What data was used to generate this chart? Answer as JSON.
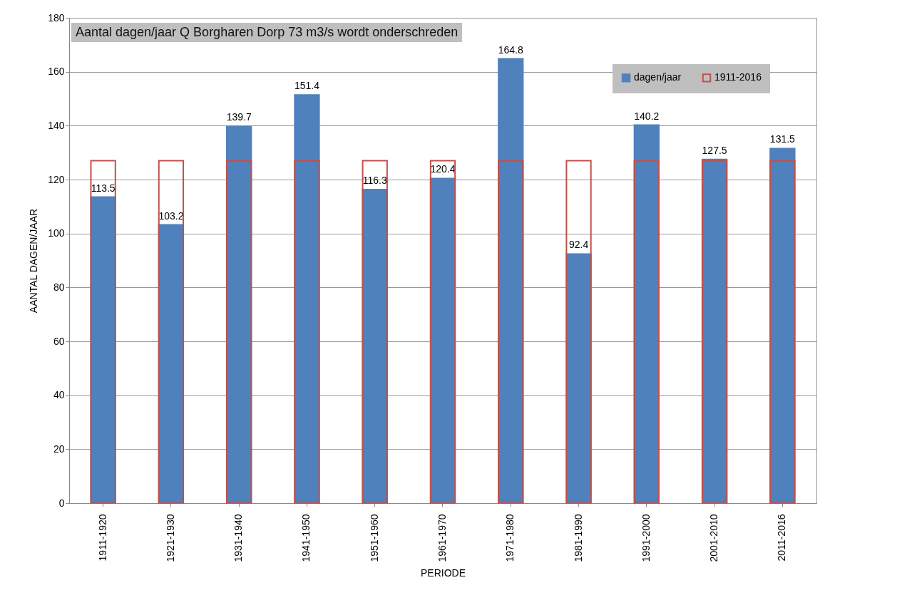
{
  "chart_data": {
    "type": "bar",
    "title": "Aantal dagen/jaar Q Borgharen Dorp 73 m3/s wordt onderschreden",
    "xlabel": "PERIODE",
    "ylabel": "AANTAL DAGEN/JAAR",
    "categories": [
      "1911-1920",
      "1921-1930",
      "1931-1940",
      "1941-1950",
      "1951-1960",
      "1961-1970",
      "1971-1980",
      "1981-1990",
      "1991-2000",
      "2001-2010",
      "2011-2016"
    ],
    "series": [
      {
        "name": "dagen/jaar",
        "color": "#4f81bd",
        "values": [
          113.5,
          103.2,
          139.7,
          151.4,
          116.3,
          120.4,
          164.8,
          92.4,
          140.2,
          127.5,
          131.5
        ],
        "value_labels": [
          "113.5",
          "103.2",
          "139.7",
          "151.4",
          "116.3",
          "120.4",
          "164.8",
          "92.4",
          "140.2",
          "127.5",
          "131.5"
        ]
      },
      {
        "name": "1911-2016",
        "color": "#c0504d",
        "values": [
          127,
          127,
          127,
          127,
          127,
          127,
          127,
          127,
          127,
          127,
          127
        ]
      }
    ],
    "ylim": [
      0,
      180
    ],
    "yticks": [
      0,
      20,
      40,
      60,
      80,
      100,
      120,
      140,
      160,
      180
    ],
    "grid": "y",
    "legend": "top right"
  }
}
